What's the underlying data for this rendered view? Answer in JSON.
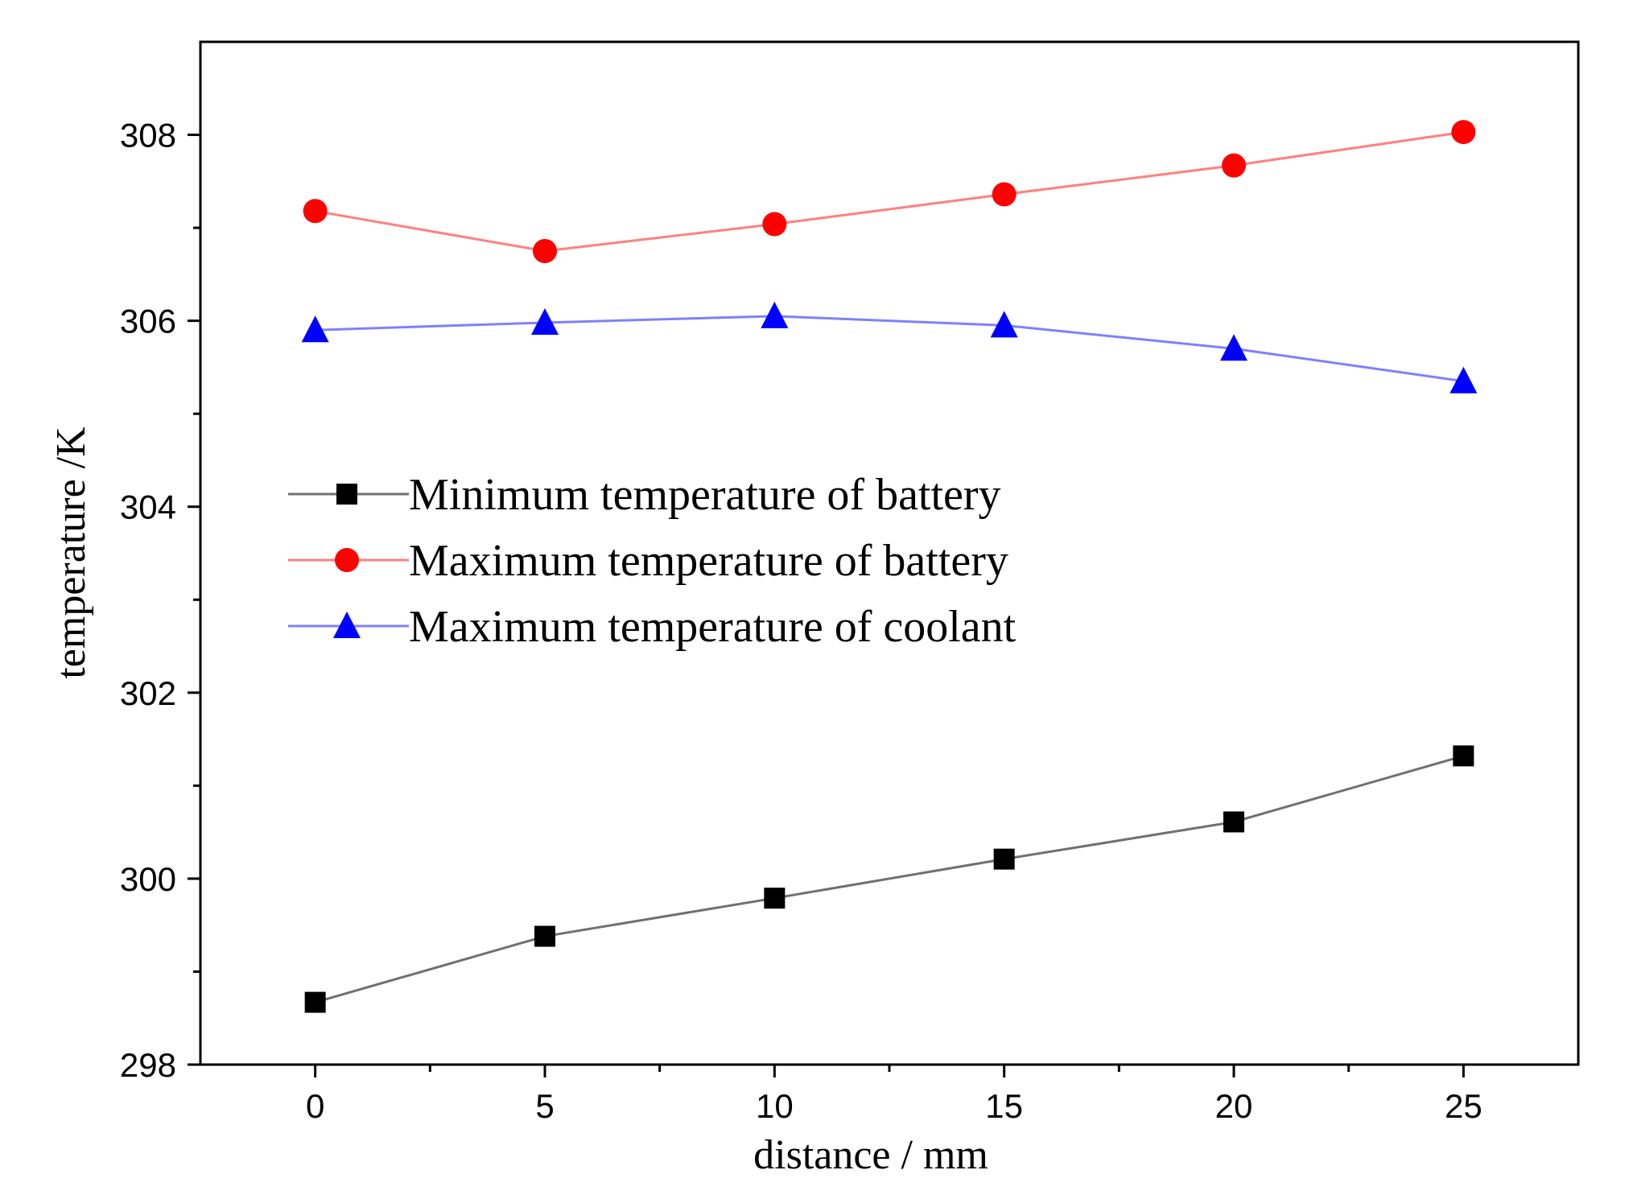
{
  "chart_data": {
    "type": "line",
    "xlabel": "distance / mm",
    "ylabel": "temperature /K",
    "xlim": [
      -2.5,
      27.5
    ],
    "ylim": [
      298,
      309
    ],
    "x_ticks": [
      0,
      5,
      10,
      15,
      20,
      25
    ],
    "y_ticks": [
      298,
      300,
      302,
      304,
      306,
      308
    ],
    "x_tick_labels": [
      "0",
      "5",
      "10",
      "15",
      "20",
      "25"
    ],
    "y_tick_labels": [
      "298",
      "300",
      "302",
      "304",
      "306",
      "308"
    ],
    "grid": false,
    "legend_position": "center-left",
    "x": [
      0,
      5,
      10,
      15,
      20,
      25
    ],
    "series": [
      {
        "name": "Minimum temperature of battery",
        "values": [
          298.67,
          299.38,
          299.79,
          300.21,
          300.61,
          301.32
        ],
        "color": "#000000",
        "line_color": "#707070",
        "marker": "square"
      },
      {
        "name": "Maximum temperature of battery",
        "values": [
          307.18,
          306.75,
          307.04,
          307.36,
          307.67,
          308.03
        ],
        "color": "#ff0000",
        "line_color": "#ff8080",
        "marker": "circle"
      },
      {
        "name": "Maximum temperature of coolant",
        "values": [
          305.9,
          305.98,
          306.05,
          305.95,
          305.7,
          305.35
        ],
        "color": "#0000ff",
        "line_color": "#8080ff",
        "marker": "triangle"
      }
    ]
  }
}
